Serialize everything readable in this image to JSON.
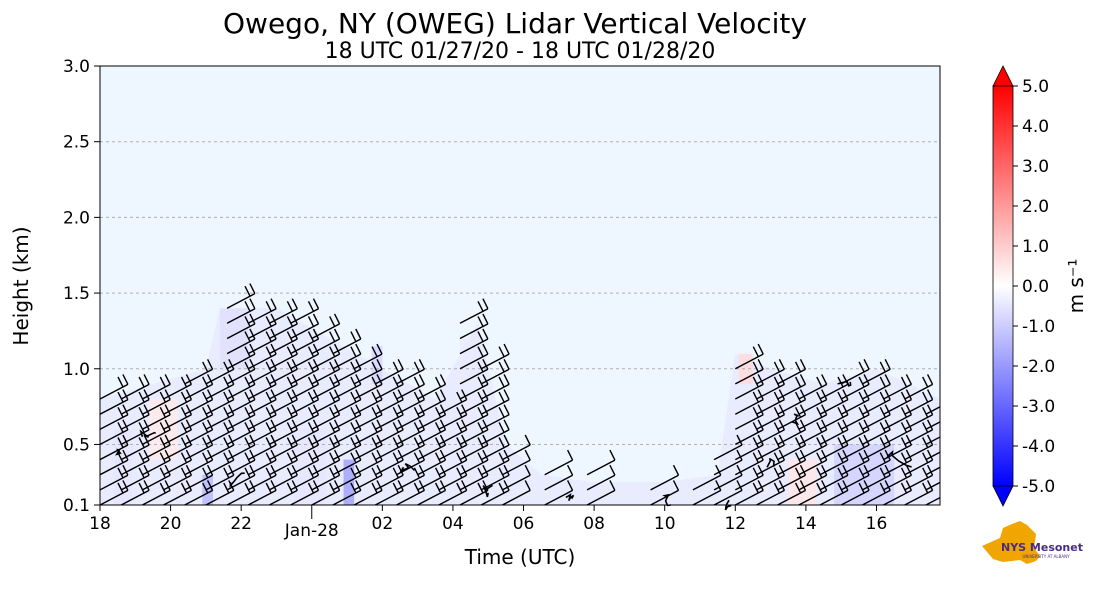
{
  "chart_data": {
    "type": "heatmap",
    "title": "Owego, NY (OWEG) Lidar Vertical Velocity",
    "subtitle": "18 UTC 01/27/20 - 18 UTC 01/28/20",
    "xlabel": "Time (UTC)",
    "ylabel": "Height (km)",
    "x_unit": "hours since 18 UTC 01/27/20",
    "xlim": [
      0,
      23.8
    ],
    "ylim": [
      0.1,
      3.0
    ],
    "x_ticks": [
      {
        "x": 0,
        "label": "18"
      },
      {
        "x": 2,
        "label": "20"
      },
      {
        "x": 4,
        "label": "22"
      },
      {
        "x": 8,
        "label": "02"
      },
      {
        "x": 10,
        "label": "04"
      },
      {
        "x": 12,
        "label": "06"
      },
      {
        "x": 14,
        "label": "08"
      },
      {
        "x": 16,
        "label": "10"
      },
      {
        "x": 18,
        "label": "12"
      },
      {
        "x": 20,
        "label": "14"
      },
      {
        "x": 22,
        "label": "16"
      }
    ],
    "date_tick": {
      "x": 6,
      "label": "Jan-28"
    },
    "y_ticks": [
      {
        "y": 0.1,
        "label": "0.1"
      },
      {
        "y": 0.5,
        "label": "0.5"
      },
      {
        "y": 1.0,
        "label": "1.0"
      },
      {
        "y": 1.5,
        "label": "1.5"
      },
      {
        "y": 2.0,
        "label": "2.0"
      },
      {
        "y": 2.5,
        "label": "2.5"
      },
      {
        "y": 3.0,
        "label": "3.0"
      }
    ],
    "grid": "horizontal dashed",
    "colorbar": {
      "label": "m s⁻¹",
      "range": [
        -5.0,
        5.0
      ],
      "ticks": [
        "5.0",
        "4.0",
        "3.0",
        "2.0",
        "1.0",
        "0.0",
        "-1.0",
        "-2.0",
        "-3.0",
        "-4.0",
        "-5.0"
      ],
      "low_color": "#0000ff",
      "mid_color": "#ffffff",
      "high_color": "#ff0000"
    },
    "echo_top_km": [
      {
        "t": 0.0,
        "top": 0.8
      },
      {
        "t": 1.5,
        "top": 0.9
      },
      {
        "t": 3.0,
        "top": 1.0
      },
      {
        "t": 3.4,
        "top": 1.4
      },
      {
        "t": 5.0,
        "top": 1.4
      },
      {
        "t": 6.5,
        "top": 1.2
      },
      {
        "t": 8.0,
        "top": 1.0
      },
      {
        "t": 9.5,
        "top": 0.8
      },
      {
        "t": 10.7,
        "top": 1.3
      },
      {
        "t": 11.5,
        "top": 0.5
      },
      {
        "t": 12.5,
        "top": 0.3
      },
      {
        "t": 14.0,
        "top": 0.25
      },
      {
        "t": 16.0,
        "top": 0.25
      },
      {
        "t": 17.5,
        "top": 0.3
      },
      {
        "t": 18.0,
        "top": 1.1
      },
      {
        "t": 19.0,
        "top": 1.0
      },
      {
        "t": 20.5,
        "top": 0.9
      },
      {
        "t": 22.0,
        "top": 1.0
      },
      {
        "t": 23.8,
        "top": 0.8
      }
    ],
    "velocity_patches": [
      {
        "t0": 3.4,
        "t1": 4.2,
        "y0": 1.0,
        "y1": 1.4,
        "w": -0.6
      },
      {
        "t0": 6.9,
        "t1": 7.2,
        "y0": 0.1,
        "y1": 0.4,
        "w": -1.8
      },
      {
        "t0": 2.9,
        "t1": 3.2,
        "y0": 0.1,
        "y1": 0.3,
        "w": -1.4
      },
      {
        "t0": 7.7,
        "t1": 8.0,
        "y0": 0.9,
        "y1": 1.15,
        "w": -0.8
      },
      {
        "t0": 10.2,
        "t1": 10.5,
        "y0": 0.6,
        "y1": 1.2,
        "w": -0.4
      },
      {
        "t0": 20.8,
        "t1": 22.5,
        "y0": 0.1,
        "y1": 0.5,
        "w": -0.9
      },
      {
        "t0": 18.1,
        "t1": 18.5,
        "y0": 0.9,
        "y1": 1.1,
        "w": 0.7
      },
      {
        "t0": 1.4,
        "t1": 2.2,
        "y0": 0.4,
        "y1": 0.8,
        "w": 0.4
      },
      {
        "t0": 19.5,
        "t1": 20.3,
        "y0": 0.1,
        "y1": 0.4,
        "w": 0.5
      },
      {
        "t0": 0.4,
        "t1": 0.9,
        "y0": 0.1,
        "y1": 0.6,
        "w": -0.5
      },
      {
        "t0": 5.5,
        "t1": 6.4,
        "y0": 0.1,
        "y1": 0.6,
        "w": -0.5
      }
    ],
    "barb_columns": [
      {
        "t": 0.0,
        "top": 0.8
      },
      {
        "t": 0.6,
        "top": 0.8
      },
      {
        "t": 1.2,
        "top": 0.85
      },
      {
        "t": 1.8,
        "top": 0.85
      },
      {
        "t": 2.4,
        "top": 0.9
      },
      {
        "t": 3.0,
        "top": 0.95
      },
      {
        "t": 3.6,
        "top": 1.4
      },
      {
        "t": 4.2,
        "top": 1.35
      },
      {
        "t": 4.8,
        "top": 1.3
      },
      {
        "t": 5.4,
        "top": 1.3
      },
      {
        "t": 6.0,
        "top": 1.2
      },
      {
        "t": 6.6,
        "top": 1.1
      },
      {
        "t": 7.2,
        "top": 1.0
      },
      {
        "t": 7.8,
        "top": 0.95
      },
      {
        "t": 8.4,
        "top": 0.9
      },
      {
        "t": 9.0,
        "top": 0.8
      },
      {
        "t": 9.6,
        "top": 0.75
      },
      {
        "t": 10.2,
        "top": 1.3
      },
      {
        "t": 10.8,
        "top": 1.0
      },
      {
        "t": 11.4,
        "top": 0.45
      },
      {
        "t": 12.6,
        "top": 0.3
      },
      {
        "t": 13.8,
        "top": 0.3
      },
      {
        "t": 15.6,
        "top": 0.25
      },
      {
        "t": 16.8,
        "top": 0.25
      },
      {
        "t": 17.4,
        "top": 0.45
      },
      {
        "t": 18.0,
        "top": 1.0
      },
      {
        "t": 18.6,
        "top": 0.95
      },
      {
        "t": 19.2,
        "top": 0.9
      },
      {
        "t": 19.8,
        "top": 0.85
      },
      {
        "t": 20.4,
        "top": 0.8
      },
      {
        "t": 21.0,
        "top": 0.95
      },
      {
        "t": 21.6,
        "top": 0.9
      },
      {
        "t": 22.2,
        "top": 0.85
      },
      {
        "t": 22.8,
        "top": 0.8
      },
      {
        "t": 23.4,
        "top": 0.75
      }
    ]
  },
  "logo": {
    "text": "NYS Mesonet",
    "subtext": "UNIVERSITY AT ALBANY",
    "color": "#4b2c83",
    "shape_color": "#f0a500"
  }
}
